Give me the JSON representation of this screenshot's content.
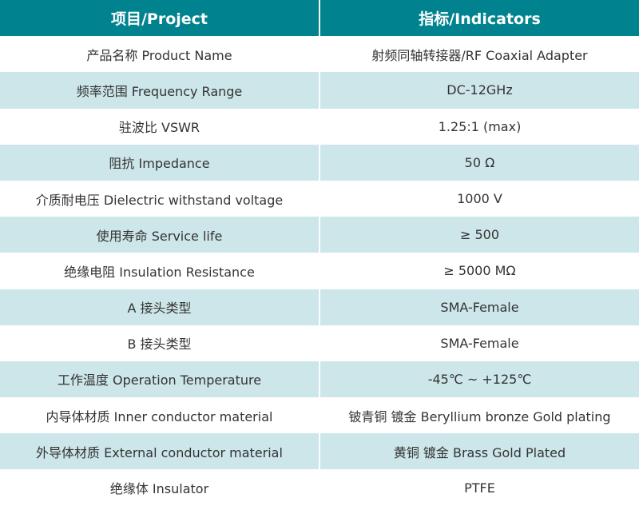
{
  "header": {
    "project": "项目/Project",
    "indicators": "指标/Indicators"
  },
  "colors": {
    "header_bg": "#00838f",
    "alt_row_bg": "#cde6ea"
  },
  "rows": [
    {
      "project": "产品名称 Product Name",
      "indicator": "射频同轴转接器/RF Coaxial Adapter"
    },
    {
      "project": "频率范围 Frequency Range",
      "indicator": "DC-12GHz"
    },
    {
      "project": "驻波比 VSWR",
      "indicator": "1.25:1 (max)"
    },
    {
      "project": "阻抗 Impedance",
      "indicator": "50 Ω"
    },
    {
      "project": "介质耐电压 Dielectric withstand voltage",
      "indicator": "1000 V"
    },
    {
      "project": "使用寿命 Service life",
      "indicator": "≥ 500"
    },
    {
      "project": "绝缘电阻 Insulation Resistance",
      "indicator": "≥ 5000 MΩ"
    },
    {
      "project": "A 接头类型",
      "indicator": "SMA-Female"
    },
    {
      "project": "B 接头类型",
      "indicator": "SMA-Female"
    },
    {
      "project": "工作温度 Operation Temperature",
      "indicator": "-45℃ ~ +125℃"
    },
    {
      "project": "内导体材质 Inner conductor material",
      "indicator": "铍青铜 镀金 Beryllium bronze Gold plating"
    },
    {
      "project": "外导体材质 External conductor material",
      "indicator": "黄铜 镀金 Brass Gold Plated"
    },
    {
      "project": "绝缘体 Insulator",
      "indicator": "PTFE"
    }
  ]
}
